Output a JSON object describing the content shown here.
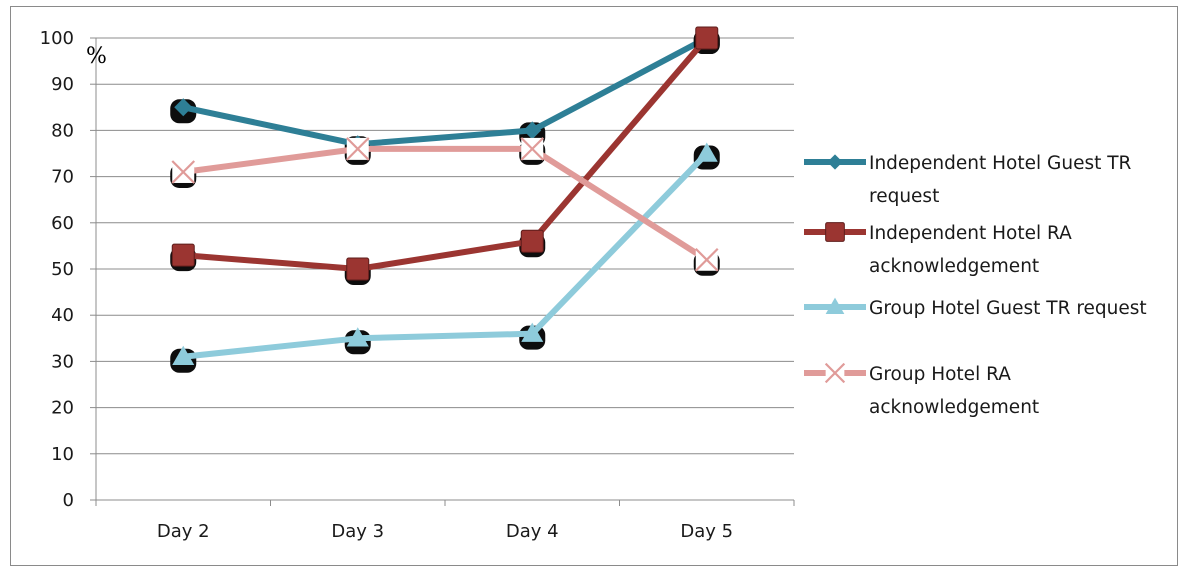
{
  "chart_data": {
    "type": "line",
    "title": "",
    "xlabel": "",
    "ylabel": "%",
    "categories": [
      "Day 2",
      "Day 3",
      "Day 4",
      "Day 5"
    ],
    "ylim": [
      0,
      100
    ],
    "yticks": [
      0,
      10,
      20,
      30,
      40,
      50,
      60,
      70,
      80,
      90,
      100
    ],
    "grid": true,
    "legend_position": "right",
    "series": [
      {
        "name": "Independent Hotel Guest TR request",
        "legend_lines": [
          "Independent Hotel Guest TR",
          "request"
        ],
        "values": [
          85,
          77,
          80,
          100
        ],
        "marker": "diamond",
        "color": "#2e7f96"
      },
      {
        "name": "Independent Hotel RA acknowledgement",
        "legend_lines": [
          "Independent Hotel RA",
          "acknowledgement"
        ],
        "values": [
          53,
          50,
          56,
          100
        ],
        "marker": "square",
        "color": "#9b3531"
      },
      {
        "name": "Group Hotel Guest TR request",
        "legend_lines": [
          "Group Hotel Guest TR request"
        ],
        "values": [
          31,
          35,
          36,
          75
        ],
        "marker": "triangle",
        "color": "#8ecbdb"
      },
      {
        "name": "Group Hotel RA acknowledgement",
        "legend_lines": [
          "Group Hotel RA",
          "acknowledgement"
        ],
        "values": [
          71,
          76,
          76,
          52
        ],
        "marker": "x",
        "color": "#e09b99"
      }
    ]
  }
}
